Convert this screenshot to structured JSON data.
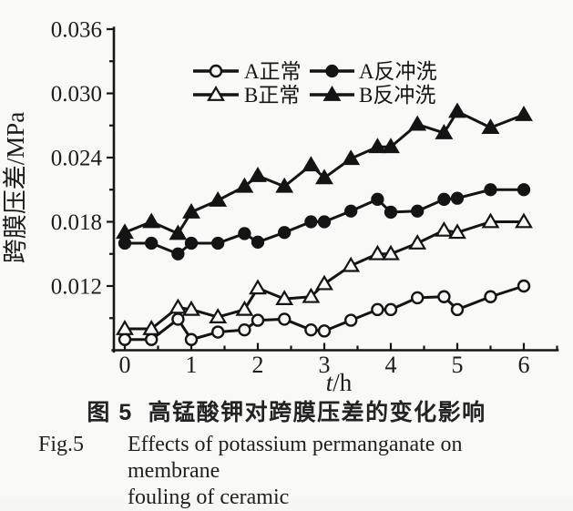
{
  "figure": {
    "caption_cn": "图 5  高锰酸钾对跨膜压差的变化影响",
    "caption_en": {
      "label": "Fig.5",
      "line1": "Effects of potassium permanganate on membrane",
      "line2": "fouling of ceramic"
    }
  },
  "colors": {
    "line": "#141414",
    "text": "#1c1c1c",
    "background": "#f9f9f8",
    "marker_open_fill": "#f9f9f8"
  },
  "chart_data": {
    "type": "line",
    "title": "",
    "xlabel": "t/h",
    "ylabel": "跨膜压差/MPa",
    "xlim": [
      0,
      6.5
    ],
    "ylim": [
      0.006,
      0.036
    ],
    "x_major_ticks": [
      0,
      1,
      2,
      3,
      4,
      5,
      6
    ],
    "x_minor_ticks": [
      0.5,
      1.5,
      2.5,
      3.5,
      4.5,
      5.5,
      6.5
    ],
    "y_major_ticks": [
      0.012,
      0.018,
      0.024,
      0.03,
      0.036
    ],
    "y_minor_ticks": [
      0.009,
      0.015,
      0.021,
      0.027,
      0.033
    ],
    "grid": false,
    "legend_position": "top-center-inside",
    "x": [
      0,
      0.4,
      0.8,
      1.0,
      1.4,
      1.8,
      2.0,
      2.4,
      2.8,
      3.0,
      3.4,
      3.8,
      4.0,
      4.4,
      4.8,
      5.0,
      5.5,
      6.0
    ],
    "series": [
      {
        "id": "a-normal",
        "name": "A正常",
        "marker": "circle-open",
        "values": [
          0.007,
          0.007,
          0.0089,
          0.007,
          0.0077,
          0.0079,
          0.0088,
          0.0089,
          0.0079,
          0.0078,
          0.0088,
          0.0098,
          0.0098,
          0.0109,
          0.011,
          0.0098,
          0.011,
          0.012
        ]
      },
      {
        "id": "a-backwash",
        "name": "A反冲洗",
        "marker": "circle-filled",
        "values": [
          0.016,
          0.016,
          0.015,
          0.016,
          0.016,
          0.0169,
          0.0161,
          0.017,
          0.018,
          0.018,
          0.019,
          0.0201,
          0.0189,
          0.019,
          0.0201,
          0.0202,
          0.021,
          0.021
        ]
      },
      {
        "id": "b-normal",
        "name": "B正常",
        "marker": "triangle-open",
        "values": [
          0.008,
          0.008,
          0.01,
          0.0098,
          0.0091,
          0.0098,
          0.0118,
          0.0108,
          0.011,
          0.0122,
          0.0139,
          0.015,
          0.015,
          0.016,
          0.0172,
          0.017,
          0.018,
          0.018
        ]
      },
      {
        "id": "b-backwash",
        "name": "B反冲洗",
        "marker": "triangle-filled",
        "values": [
          0.017,
          0.018,
          0.0169,
          0.0189,
          0.02,
          0.0213,
          0.0223,
          0.0213,
          0.0233,
          0.0221,
          0.0239,
          0.025,
          0.025,
          0.0271,
          0.0263,
          0.0283,
          0.0268,
          0.028
        ]
      }
    ],
    "legend_rows": [
      [
        "a-normal",
        "a-backwash"
      ],
      [
        "b-normal",
        "b-backwash"
      ]
    ]
  }
}
